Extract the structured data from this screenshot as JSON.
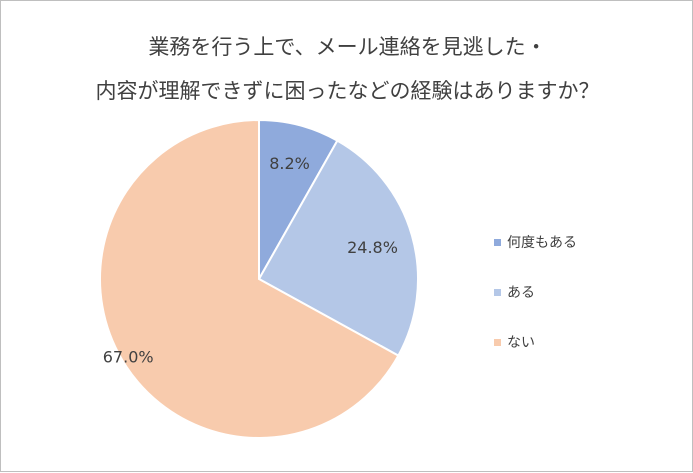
{
  "chart_data": {
    "type": "pie",
    "title_lines": [
      "業務を行う上で、メール連絡を見逃した・",
      "内容が理解できずに困ったなどの経験はありますか？"
    ],
    "categories": [
      "何度もある",
      "ある",
      "ない"
    ],
    "values": [
      8.2,
      24.8,
      67.0
    ],
    "data_labels": [
      "8.2%",
      "24.8%",
      "67.0%"
    ],
    "colors": [
      "#8faadc",
      "#b4c7e7",
      "#f8cbad"
    ],
    "start_angle": "12 o'clock, clockwise",
    "legend_position": "right"
  }
}
